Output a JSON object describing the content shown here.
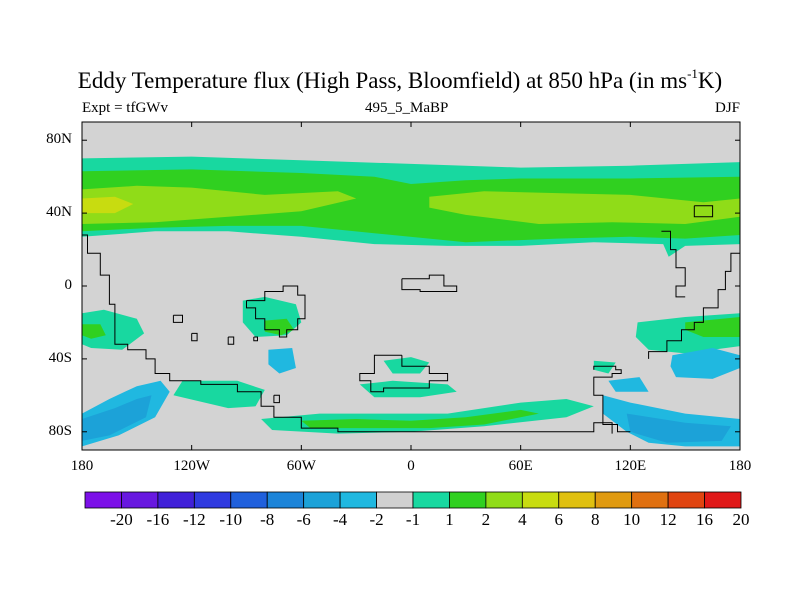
{
  "chart_data": {
    "type": "heatmap",
    "title_main": "Eddy Temperature flux (High Pass, Bloomfield) at 850 hPa (in ms",
    "title_sup": "-1",
    "title_tail": "K)",
    "left_label": "Expt = tfGWv",
    "center_label": "495_5_MaBP",
    "right_label": "DJF",
    "projection": "cylindrical equidistant",
    "xlim": [
      -180,
      180
    ],
    "ylim": [
      -90,
      90
    ],
    "x_ticks": [
      "180",
      "120W",
      "60W",
      "0",
      "60E",
      "120E",
      "180"
    ],
    "y_ticks": [
      "80N",
      "40N",
      "0",
      "40S",
      "80S"
    ],
    "colorbar_labels": [
      "-20",
      "-16",
      "-12",
      "-10",
      "-8",
      "-6",
      "-4",
      "-2",
      "-1",
      "1",
      "2",
      "4",
      "6",
      "8",
      "10",
      "12",
      "16",
      "20"
    ],
    "colorbar_colors": [
      "#7c10e8",
      "#6818e0",
      "#4020d8",
      "#2f3ae0",
      "#2060dc",
      "#1c84d8",
      "#1ca2d8",
      "#20b8e0",
      "#d0d0d0",
      "#18d8a0",
      "#30d020",
      "#90dc18",
      "#c8dc10",
      "#e0c010",
      "#e09a10",
      "#e07010",
      "#e04410",
      "#e01818"
    ],
    "background_value_range": "-1 to 1",
    "colors": {
      "neutral": "#d3d3d3",
      "flux_1_2": "#18d8a0",
      "flux_2_4": "#30d020",
      "flux_4_6": "#90dc18",
      "flux_6_8": "#c8dc10",
      "neg_1_2": "#20b8e0",
      "neg_2_4": "#1ca2d8"
    }
  }
}
